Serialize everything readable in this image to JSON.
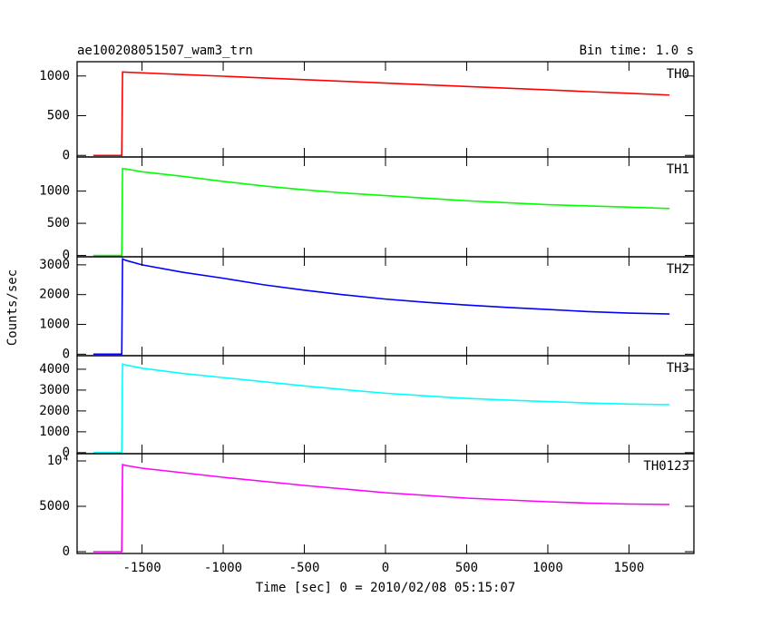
{
  "chart_data": [
    {
      "type": "line",
      "title": "ae100208051507_wam3_trn",
      "subtitle": "Bin time: 1.0 s",
      "x": [
        -1800,
        -1625,
        -1620,
        -1600,
        -1500,
        -1250,
        -1000,
        -750,
        -500,
        -250,
        0,
        250,
        500,
        750,
        1000,
        1250,
        1500,
        1750
      ],
      "series": [
        {
          "name": "TH0",
          "color": "#ff0000",
          "values": [
            0,
            0,
            1050,
            1048,
            1040,
            1018,
            997,
            975,
            954,
            932,
            911,
            889,
            868,
            846,
            825,
            803,
            782,
            760
          ]
        }
      ],
      "xlim": [
        -1900,
        1900
      ],
      "ylim": [
        -20,
        1180
      ],
      "yticks": [
        0,
        500,
        1000
      ]
    },
    {
      "type": "line",
      "x": [
        -1800,
        -1625,
        -1620,
        -1600,
        -1500,
        -1250,
        -1000,
        -750,
        -500,
        -250,
        0,
        250,
        500,
        750,
        1000,
        1250,
        1500,
        1750
      ],
      "series": [
        {
          "name": "TH1",
          "color": "#00ff00",
          "values": [
            0,
            0,
            1350,
            1345,
            1300,
            1230,
            1150,
            1080,
            1020,
            970,
            930,
            890,
            850,
            820,
            790,
            770,
            750,
            730
          ]
        }
      ],
      "xlim": [
        -1900,
        1900
      ],
      "ylim": [
        -20,
        1530
      ],
      "yticks": [
        0,
        500,
        1000
      ]
    },
    {
      "type": "line",
      "ylabel": "Counts/sec",
      "x": [
        -1800,
        -1625,
        -1620,
        -1600,
        -1500,
        -1250,
        -1000,
        -750,
        -500,
        -250,
        0,
        250,
        500,
        750,
        1000,
        1250,
        1500,
        1750
      ],
      "series": [
        {
          "name": "TH2",
          "color": "#0000ff",
          "values": [
            0,
            0,
            3200,
            3150,
            3000,
            2750,
            2550,
            2330,
            2150,
            1990,
            1850,
            1740,
            1650,
            1570,
            1500,
            1430,
            1380,
            1350
          ]
        }
      ],
      "xlim": [
        -1900,
        1900
      ],
      "ylim": [
        -50,
        3270
      ],
      "yticks": [
        0,
        1000,
        2000,
        3000
      ]
    },
    {
      "type": "line",
      "x": [
        -1800,
        -1625,
        -1620,
        -1600,
        -1500,
        -1250,
        -1000,
        -750,
        -500,
        -250,
        0,
        250,
        500,
        750,
        1000,
        1250,
        1500,
        1750
      ],
      "series": [
        {
          "name": "TH3",
          "color": "#00ffff",
          "values": [
            0,
            0,
            4250,
            4200,
            4050,
            3800,
            3600,
            3400,
            3200,
            3020,
            2850,
            2720,
            2600,
            2520,
            2450,
            2380,
            2330,
            2300
          ]
        }
      ],
      "xlim": [
        -1900,
        1900
      ],
      "ylim": [
        -50,
        4650
      ],
      "yticks": [
        0,
        1000,
        2000,
        3000,
        4000
      ]
    },
    {
      "type": "line",
      "xlabel": "Time [sec] 0 = 2010/02/08 05:15:07",
      "x": [
        -1800,
        -1625,
        -1620,
        -1600,
        -1500,
        -1250,
        -1000,
        -750,
        -500,
        -250,
        0,
        250,
        500,
        750,
        1000,
        1250,
        1500,
        1750
      ],
      "series": [
        {
          "name": "TH0123",
          "color": "#ff00ff",
          "values": [
            0,
            0,
            9600,
            9500,
            9200,
            8700,
            8200,
            7750,
            7300,
            6900,
            6500,
            6200,
            5900,
            5700,
            5500,
            5350,
            5250,
            5200
          ]
        }
      ],
      "xlim": [
        -1900,
        1900
      ],
      "ylim": [
        -200,
        10800
      ],
      "yticks": [
        0,
        5000,
        {
          "value": 10000,
          "label": "10⁴"
        }
      ],
      "xticks": [
        -1500,
        -1000,
        -500,
        0,
        500,
        1000,
        1500
      ]
    }
  ]
}
